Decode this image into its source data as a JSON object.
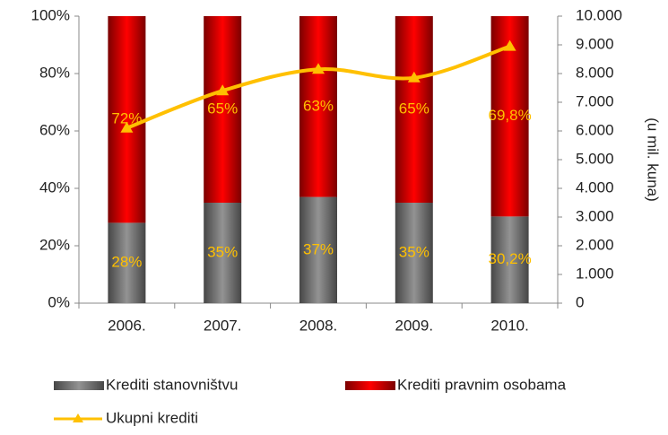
{
  "chart_data": {
    "type": "stacked-bar-line",
    "categories": [
      "2006.",
      "2007.",
      "2008.",
      "2009.",
      "2010."
    ],
    "series": [
      {
        "name": "Krediti stanovništvu",
        "color": "#808080",
        "values": [
          28,
          35,
          37,
          35,
          30.2
        ],
        "value_labels": [
          "28%",
          "35%",
          "37%",
          "35%",
          "30,2%"
        ]
      },
      {
        "name": "Krediti pravnim osobama",
        "color": "#e00000",
        "values": [
          72,
          65,
          63,
          65,
          69.8
        ],
        "value_labels": [
          "72%",
          "65%",
          "63%",
          "65%",
          "69,8%"
        ]
      },
      {
        "name": "Ukupni krediti",
        "color": "#ffc000",
        "axis": "y2",
        "values": [
          6100,
          7400,
          8150,
          7850,
          8950
        ]
      }
    ],
    "label_color": "#ffc000",
    "ylim": [
      0,
      100
    ],
    "yticks": [
      {
        "value": 0,
        "label": "0%"
      },
      {
        "value": 20,
        "label": "20%"
      },
      {
        "value": 40,
        "label": "40%"
      },
      {
        "value": 60,
        "label": "60%"
      },
      {
        "value": 80,
        "label": "80%"
      },
      {
        "value": 100,
        "label": "100%"
      }
    ],
    "y2lim": [
      0,
      10000
    ],
    "y2ticks": [
      0,
      {
        "value": 1000,
        "label": "1.000"
      },
      {
        "value": 2000,
        "label": "2.000"
      },
      {
        "value": 3000,
        "label": "3.000"
      },
      {
        "value": 4000,
        "label": "4.000"
      },
      {
        "value": 5000,
        "label": "5.000"
      },
      {
        "value": 6000,
        "label": "6.000"
      },
      {
        "value": 7000,
        "label": "7.000"
      },
      {
        "value": 8000,
        "label": "8.000"
      },
      {
        "value": 9000,
        "label": "9.000"
      },
      {
        "value": 10000,
        "label": "10.000"
      }
    ],
    "y2label": "(u mil. kuna)"
  }
}
